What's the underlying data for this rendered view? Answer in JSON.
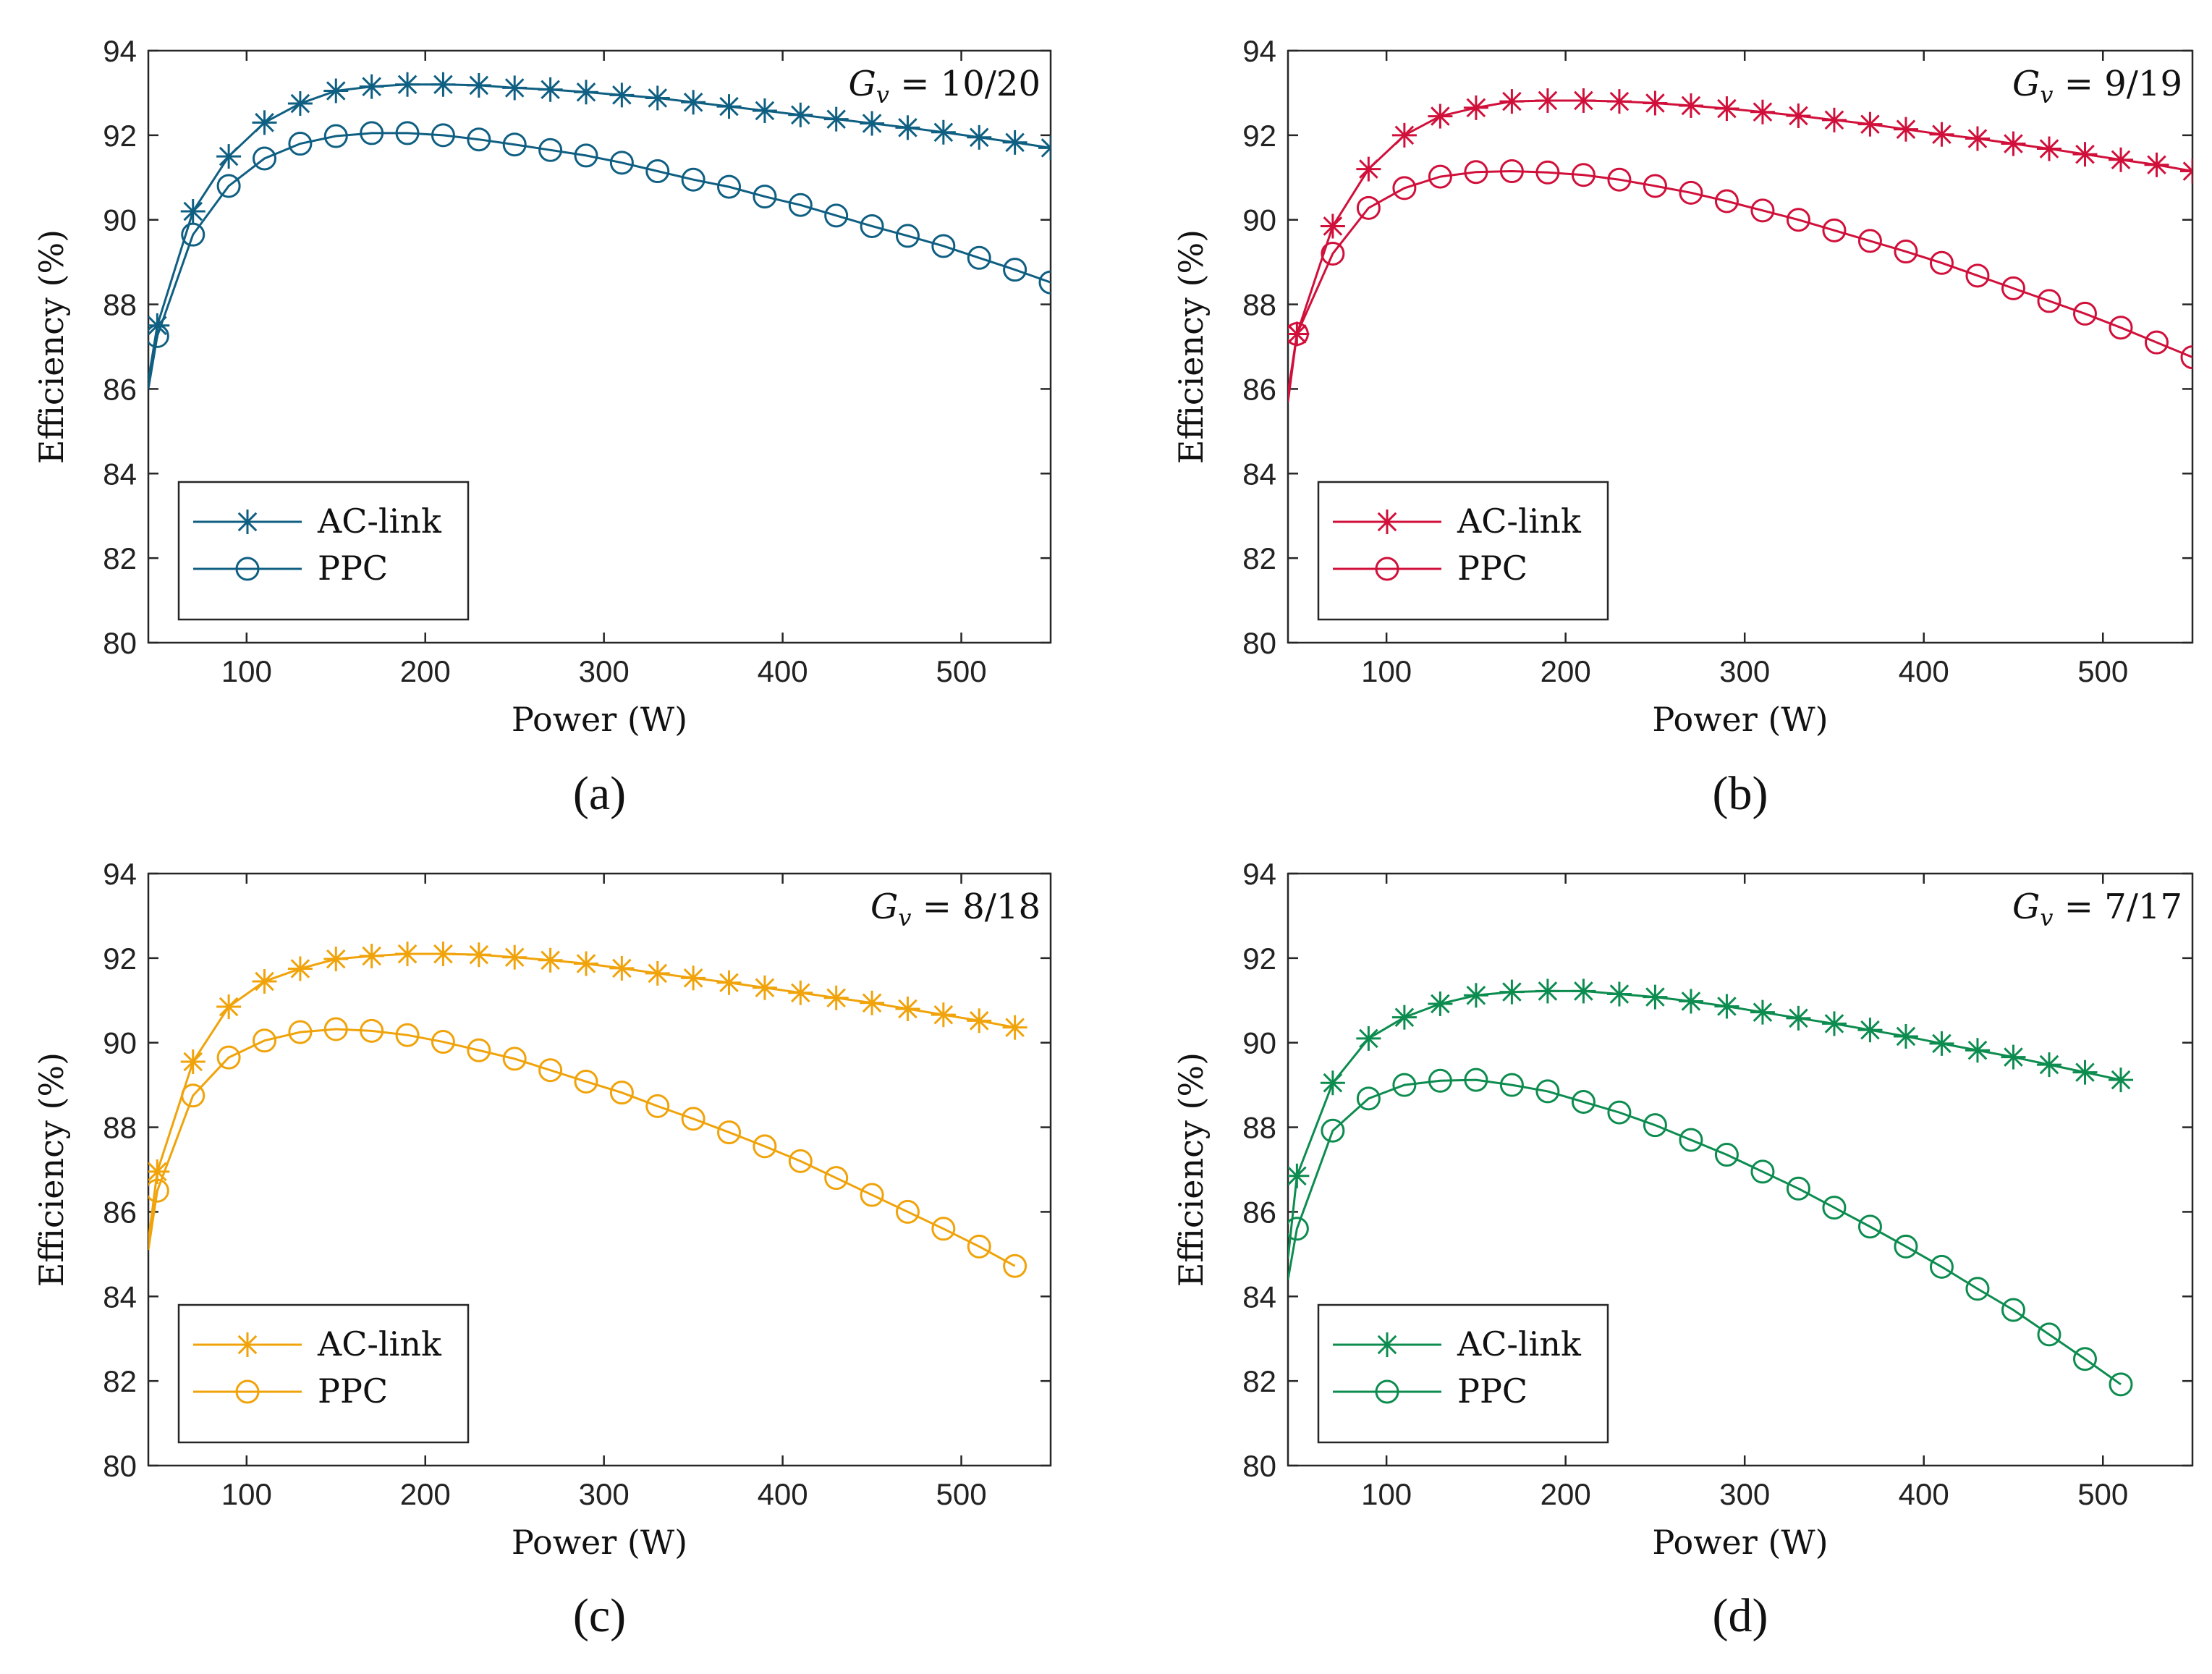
{
  "chart_data": [
    {
      "type": "line",
      "panel": "a",
      "caption": "(a)",
      "annotation": {
        "prefix": "G",
        "subscript": "v",
        "value": " = 10/20"
      },
      "xlabel": "Power (W)",
      "ylabel": "Efficiency (%)",
      "xlim": [
        45,
        550
      ],
      "ylim": [
        80,
        94
      ],
      "xticks": [
        100,
        200,
        300,
        400,
        500
      ],
      "yticks": [
        80,
        82,
        84,
        86,
        88,
        90,
        92,
        94
      ],
      "color": "#0f5f82",
      "legend": {
        "position": "bottom-left"
      },
      "series": [
        {
          "name": "AC-link",
          "marker": "asterisk",
          "line_start": [
            45,
            86.2
          ],
          "x": [
            50,
            70,
            90,
            110,
            130,
            150,
            170,
            190,
            210,
            230,
            250,
            270,
            290,
            310,
            330,
            350,
            370,
            390,
            410,
            430,
            450,
            470,
            490,
            510,
            530,
            550
          ],
          "values": [
            87.5,
            90.2,
            91.5,
            92.3,
            92.75,
            93.05,
            93.15,
            93.2,
            93.2,
            93.18,
            93.12,
            93.08,
            93.02,
            92.95,
            92.88,
            92.78,
            92.68,
            92.58,
            92.48,
            92.38,
            92.28,
            92.18,
            92.07,
            91.95,
            91.83,
            91.7
          ]
        },
        {
          "name": "PPC",
          "marker": "circle",
          "line_start": [
            45,
            86.0
          ],
          "x": [
            50,
            70,
            90,
            110,
            130,
            150,
            170,
            190,
            210,
            230,
            250,
            270,
            290,
            310,
            330,
            350,
            370,
            390,
            410,
            430,
            450,
            470,
            490,
            510,
            530,
            550
          ],
          "values": [
            87.25,
            89.65,
            90.8,
            91.45,
            91.8,
            91.98,
            92.05,
            92.05,
            92.0,
            91.9,
            91.78,
            91.65,
            91.52,
            91.35,
            91.15,
            90.95,
            90.78,
            90.55,
            90.35,
            90.1,
            89.85,
            89.62,
            89.38,
            89.1,
            88.82,
            88.52
          ]
        }
      ]
    },
    {
      "type": "line",
      "panel": "b",
      "caption": "(b)",
      "annotation": {
        "prefix": "G",
        "subscript": "v",
        "value": " = 9/19"
      },
      "xlabel": "Power (W)",
      "ylabel": "Efficiency (%)",
      "xlim": [
        45,
        550
      ],
      "ylim": [
        80,
        94
      ],
      "xticks": [
        100,
        200,
        300,
        400,
        500
      ],
      "yticks": [
        80,
        82,
        84,
        86,
        88,
        90,
        92,
        94
      ],
      "color": "#d0103a",
      "legend": {
        "position": "bottom-left"
      },
      "series": [
        {
          "name": "AC-link",
          "marker": "asterisk",
          "line_start": [
            45,
            85.7
          ],
          "x": [
            50,
            70,
            90,
            110,
            130,
            150,
            170,
            190,
            210,
            230,
            250,
            270,
            290,
            310,
            330,
            350,
            370,
            390,
            410,
            430,
            450,
            470,
            490,
            510,
            530,
            550
          ],
          "values": [
            87.3,
            89.85,
            91.2,
            92.0,
            92.45,
            92.65,
            92.8,
            92.82,
            92.82,
            92.8,
            92.76,
            92.7,
            92.63,
            92.55,
            92.46,
            92.36,
            92.26,
            92.14,
            92.02,
            91.92,
            91.8,
            91.68,
            91.55,
            91.42,
            91.3,
            91.15
          ]
        },
        {
          "name": "PPC",
          "marker": "circle",
          "line_start": [
            45,
            85.9
          ],
          "x": [
            50,
            70,
            90,
            110,
            130,
            150,
            170,
            190,
            210,
            230,
            250,
            270,
            290,
            310,
            330,
            350,
            370,
            390,
            410,
            430,
            450,
            470,
            490,
            510,
            530,
            550
          ],
          "values": [
            87.3,
            89.2,
            90.28,
            90.75,
            91.02,
            91.13,
            91.15,
            91.12,
            91.06,
            90.95,
            90.8,
            90.64,
            90.44,
            90.22,
            90.0,
            89.75,
            89.5,
            89.25,
            88.98,
            88.68,
            88.38,
            88.08,
            87.78,
            87.45,
            87.1,
            86.75
          ]
        }
      ]
    },
    {
      "type": "line",
      "panel": "c",
      "caption": "(c)",
      "annotation": {
        "prefix": "G",
        "subscript": "v",
        "value": " = 8/18"
      },
      "xlabel": "Power (W)",
      "ylabel": "Efficiency (%)",
      "xlim": [
        45,
        550
      ],
      "ylim": [
        80,
        94
      ],
      "xticks": [
        100,
        200,
        300,
        400,
        500
      ],
      "yticks": [
        80,
        82,
        84,
        86,
        88,
        90,
        92,
        94
      ],
      "color": "#f0a30a",
      "legend": {
        "position": "bottom-left"
      },
      "series": [
        {
          "name": "AC-link",
          "marker": "asterisk",
          "line_start": [
            45,
            85.3
          ],
          "x": [
            50,
            70,
            90,
            110,
            130,
            150,
            170,
            190,
            210,
            230,
            250,
            270,
            290,
            310,
            330,
            350,
            370,
            390,
            410,
            430,
            450,
            470,
            490,
            510,
            530
          ],
          "values": [
            86.95,
            89.55,
            90.85,
            91.45,
            91.75,
            91.98,
            92.05,
            92.1,
            92.1,
            92.08,
            92.02,
            91.95,
            91.87,
            91.76,
            91.64,
            91.53,
            91.42,
            91.3,
            91.18,
            91.06,
            90.94,
            90.8,
            90.66,
            90.52,
            90.36
          ]
        },
        {
          "name": "PPC",
          "marker": "circle",
          "line_start": [
            45,
            85.1
          ],
          "x": [
            50,
            70,
            90,
            110,
            130,
            150,
            170,
            190,
            210,
            230,
            250,
            270,
            290,
            310,
            330,
            350,
            370,
            390,
            410,
            430,
            450,
            470,
            490,
            510,
            530
          ],
          "values": [
            86.5,
            88.75,
            89.65,
            90.05,
            90.25,
            90.32,
            90.28,
            90.18,
            90.02,
            89.82,
            89.62,
            89.35,
            89.08,
            88.82,
            88.5,
            88.2,
            87.88,
            87.55,
            87.2,
            86.8,
            86.4,
            86.0,
            85.6,
            85.18,
            84.72
          ]
        }
      ]
    },
    {
      "type": "line",
      "panel": "d",
      "caption": "(d)",
      "annotation": {
        "prefix": "G",
        "subscript": "v",
        "value": " = 7/17"
      },
      "xlabel": "Power (W)",
      "ylabel": "Efficiency (%)",
      "xlim": [
        45,
        550
      ],
      "ylim": [
        80,
        94
      ],
      "xticks": [
        100,
        200,
        300,
        400,
        500
      ],
      "yticks": [
        80,
        82,
        84,
        86,
        88,
        90,
        92,
        94
      ],
      "color": "#0d8c4f",
      "legend": {
        "position": "bottom-left"
      },
      "series": [
        {
          "name": "AC-link",
          "marker": "asterisk",
          "line_start": [
            45,
            84.9
          ],
          "x": [
            50,
            70,
            90,
            110,
            130,
            150,
            170,
            190,
            210,
            230,
            250,
            270,
            290,
            310,
            330,
            350,
            370,
            390,
            410,
            430,
            450,
            470,
            490,
            510
          ],
          "values": [
            86.85,
            89.05,
            90.1,
            90.6,
            90.92,
            91.12,
            91.2,
            91.22,
            91.22,
            91.15,
            91.08,
            90.98,
            90.86,
            90.72,
            90.58,
            90.45,
            90.3,
            90.15,
            89.98,
            89.82,
            89.66,
            89.48,
            89.3,
            89.12
          ]
        },
        {
          "name": "PPC",
          "marker": "circle",
          "line_start": [
            45,
            84.4
          ],
          "x": [
            50,
            70,
            90,
            110,
            130,
            150,
            170,
            190,
            210,
            230,
            250,
            270,
            290,
            310,
            330,
            350,
            370,
            390,
            410,
            430,
            450,
            470,
            490,
            510
          ],
          "values": [
            85.6,
            87.92,
            88.68,
            89.0,
            89.1,
            89.12,
            89.0,
            88.85,
            88.6,
            88.35,
            88.05,
            87.7,
            87.35,
            86.95,
            86.55,
            86.1,
            85.65,
            85.18,
            84.7,
            84.18,
            83.68,
            83.1,
            82.52,
            81.92
          ]
        }
      ]
    }
  ]
}
